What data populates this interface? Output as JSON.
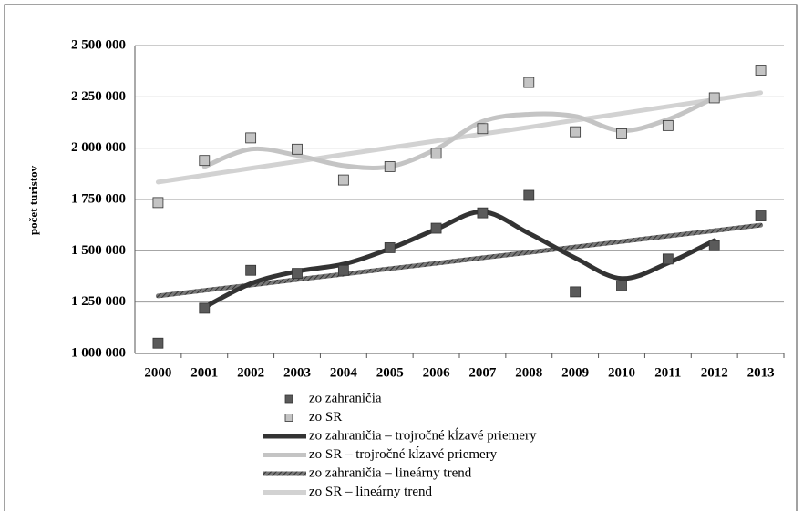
{
  "chart_data": {
    "type": "line",
    "y_label": "počet turistov",
    "categories": [
      "2000",
      "2001",
      "2002",
      "2003",
      "2004",
      "2005",
      "2006",
      "2007",
      "2008",
      "2009",
      "2010",
      "2011",
      "2012",
      "2013"
    ],
    "ylim": [
      1000000,
      2500000
    ],
    "yticks": [
      {
        "value": 1000000,
        "label": "1 000 000"
      },
      {
        "value": 1250000,
        "label": "1 250 000"
      },
      {
        "value": 1500000,
        "label": "1 500 000"
      },
      {
        "value": 1750000,
        "label": "1 750 000"
      },
      {
        "value": 2000000,
        "label": "2 000 000"
      },
      {
        "value": 2250000,
        "label": "2 250 000"
      },
      {
        "value": 2500000,
        "label": "2 500 000"
      }
    ],
    "grid": true,
    "series": [
      {
        "name": "zo zahraničia",
        "style": "marker",
        "color": "#5a5a5a",
        "values": [
          1050000,
          1220000,
          1405000,
          1390000,
          1405000,
          1515000,
          1610000,
          1685000,
          1770000,
          1300000,
          1330000,
          1460000,
          1525000,
          1670000
        ]
      },
      {
        "name": "zo SR",
        "style": "marker",
        "color": "#c4c4c4",
        "values": [
          1735000,
          1940000,
          2050000,
          1995000,
          1845000,
          1910000,
          1975000,
          2095000,
          2320000,
          2080000,
          2070000,
          2110000,
          2245000,
          2380000
        ]
      },
      {
        "name": "zo zahraničia – trojročné kĺzavé priemery",
        "style": "smooth",
        "color": "#333333",
        "values": [
          null,
          1225000,
          1340000,
          1400000,
          1435000,
          1510000,
          1605000,
          1690000,
          1585000,
          1465000,
          1365000,
          1440000,
          1550000,
          null
        ]
      },
      {
        "name": "zo SR – trojročné kĺzavé priemery",
        "style": "smooth",
        "color": "#c4c4c4",
        "values": [
          null,
          1910000,
          1995000,
          1965000,
          1915000,
          1910000,
          1995000,
          2130000,
          2165000,
          2155000,
          2085000,
          2140000,
          2245000,
          null
        ]
      },
      {
        "name": "zo zahraničia – lineárny trend",
        "style": "hatched",
        "color": "#5a5a5a",
        "values": [
          1280000,
          1307000,
          1333000,
          1360000,
          1386000,
          1413000,
          1439000,
          1466000,
          1492000,
          1519000,
          1545000,
          1572000,
          1598000,
          1625000
        ]
      },
      {
        "name": "zo SR – lineárny trend",
        "style": "straight",
        "color": "#d2d2d2",
        "values": [
          1835000,
          1868000,
          1902000,
          1935000,
          1969000,
          2002000,
          2035000,
          2069000,
          2102000,
          2136000,
          2169000,
          2203000,
          2236000,
          2270000
        ]
      }
    ]
  }
}
